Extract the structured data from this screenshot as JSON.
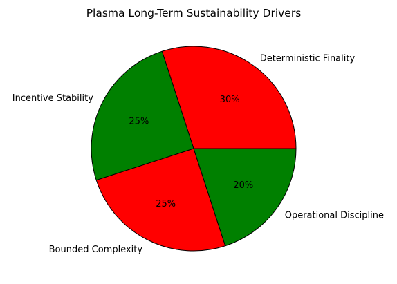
{
  "chart_data": {
    "type": "pie",
    "title": "Plasma Long-Term Sustainability Drivers",
    "start_angle_deg": 0,
    "direction": "counterclockwise",
    "slices": [
      {
        "label": "Deterministic Finality",
        "value": 30,
        "pct_label": "30%",
        "color": "#ff0000"
      },
      {
        "label": "Incentive Stability",
        "value": 25,
        "pct_label": "25%",
        "color": "#008000"
      },
      {
        "label": "Bounded Complexity",
        "value": 25,
        "pct_label": "25%",
        "color": "#ff0000"
      },
      {
        "label": "Operational Discipline",
        "value": 20,
        "pct_label": "20%",
        "color": "#008000"
      }
    ],
    "edge_color": "#000000"
  }
}
